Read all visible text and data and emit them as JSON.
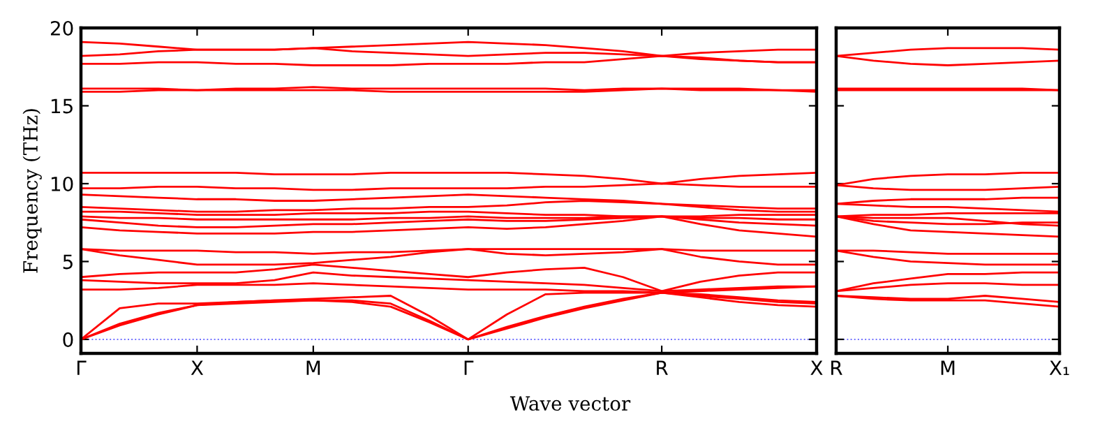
{
  "chart_data": [
    {
      "type": "line",
      "ylabel": "Frequency (THz)",
      "xlabel": "Wave vector",
      "ylim": [
        -0.9,
        20
      ],
      "categories": [
        "Γ",
        null,
        null,
        "X",
        null,
        null,
        "M",
        null,
        null,
        null,
        "Γ",
        null,
        null,
        null,
        null,
        "R",
        null,
        null,
        null,
        "X"
      ],
      "yticks": [
        0,
        5,
        10,
        15,
        20
      ],
      "grid": false,
      "line_style": "solid",
      "marker": "none",
      "ref_lines": [
        {
          "axis": "y",
          "value": 0,
          "color": "#7070ff",
          "line_style": "dotted"
        }
      ],
      "series": [
        {
          "color": "#ff0000",
          "values": [
            19.1,
            19.0,
            18.8,
            18.6,
            18.6,
            18.6,
            18.7,
            18.8,
            18.9,
            19.0,
            19.1,
            19.0,
            18.9,
            18.7,
            18.5,
            18.2,
            18.4,
            18.5,
            18.6,
            18.6
          ]
        },
        {
          "color": "#ff0000",
          "values": [
            18.2,
            18.3,
            18.5,
            18.6,
            18.6,
            18.6,
            18.7,
            18.5,
            18.4,
            18.3,
            18.2,
            18.3,
            18.4,
            18.4,
            18.3,
            18.2,
            18.1,
            17.9,
            17.8,
            17.8
          ]
        },
        {
          "color": "#ff0000",
          "values": [
            17.7,
            17.7,
            17.8,
            17.8,
            17.7,
            17.7,
            17.6,
            17.6,
            17.6,
            17.7,
            17.7,
            17.7,
            17.8,
            17.8,
            18.0,
            18.2,
            18.0,
            17.9,
            17.8,
            17.8
          ]
        },
        {
          "color": "#ff0000",
          "values": [
            16.1,
            16.1,
            16.1,
            16.0,
            16.1,
            16.1,
            16.2,
            16.1,
            16.1,
            16.1,
            16.1,
            16.1,
            16.1,
            16.0,
            16.1,
            16.1,
            16.1,
            16.1,
            16.0,
            16.0
          ]
        },
        {
          "color": "#ff0000",
          "values": [
            15.9,
            15.9,
            16.0,
            16.0,
            16.0,
            16.0,
            16.0,
            16.0,
            15.9,
            15.9,
            15.9,
            15.9,
            15.9,
            15.9,
            16.0,
            16.1,
            16.0,
            16.0,
            16.0,
            15.9
          ]
        },
        {
          "color": "#ff0000",
          "values": [
            10.7,
            10.7,
            10.7,
            10.7,
            10.7,
            10.6,
            10.6,
            10.6,
            10.7,
            10.7,
            10.7,
            10.7,
            10.6,
            10.5,
            10.3,
            10.0,
            10.3,
            10.5,
            10.6,
            10.7
          ]
        },
        {
          "color": "#ff0000",
          "values": [
            9.7,
            9.7,
            9.8,
            9.8,
            9.7,
            9.7,
            9.6,
            9.6,
            9.7,
            9.7,
            9.7,
            9.7,
            9.8,
            9.8,
            9.9,
            10.0,
            9.9,
            9.8,
            9.8,
            9.8
          ]
        },
        {
          "color": "#ff0000",
          "values": [
            9.3,
            9.2,
            9.1,
            9.0,
            9.0,
            8.9,
            8.9,
            9.0,
            9.1,
            9.2,
            9.3,
            9.2,
            9.1,
            9.0,
            8.9,
            8.7,
            8.6,
            8.5,
            8.4,
            8.4
          ]
        },
        {
          "color": "#ff0000",
          "values": [
            8.5,
            8.4,
            8.3,
            8.2,
            8.2,
            8.3,
            8.3,
            8.4,
            8.4,
            8.5,
            8.5,
            8.6,
            8.8,
            8.9,
            8.8,
            8.7,
            8.5,
            8.3,
            8.2,
            8.2
          ]
        },
        {
          "color": "#ff0000",
          "values": [
            8.2,
            8.2,
            8.1,
            8.0,
            8.0,
            8.0,
            8.1,
            8.1,
            8.1,
            8.2,
            8.2,
            8.1,
            8.0,
            8.0,
            7.9,
            7.9,
            7.9,
            8.0,
            8.0,
            8.0
          ]
        },
        {
          "color": "#ff0000",
          "values": [
            7.9,
            7.8,
            7.8,
            7.7,
            7.7,
            7.7,
            7.7,
            7.7,
            7.8,
            7.8,
            7.9,
            7.8,
            7.8,
            7.8,
            7.9,
            7.9,
            7.8,
            7.8,
            7.7,
            7.7
          ]
        },
        {
          "color": "#ff0000",
          "values": [
            7.7,
            7.5,
            7.3,
            7.2,
            7.2,
            7.3,
            7.4,
            7.4,
            7.5,
            7.6,
            7.7,
            7.6,
            7.6,
            7.7,
            7.8,
            7.9,
            7.7,
            7.5,
            7.4,
            7.3
          ]
        },
        {
          "color": "#ff0000",
          "values": [
            7.2,
            7.0,
            6.9,
            6.8,
            6.8,
            6.8,
            6.9,
            6.9,
            7.0,
            7.1,
            7.2,
            7.1,
            7.2,
            7.4,
            7.6,
            7.9,
            7.4,
            7.0,
            6.8,
            6.6
          ]
        },
        {
          "color": "#ff0000",
          "values": [
            5.8,
            5.7,
            5.7,
            5.7,
            5.6,
            5.6,
            5.5,
            5.6,
            5.6,
            5.7,
            5.8,
            5.8,
            5.8,
            5.8,
            5.8,
            5.8,
            5.7,
            5.7,
            5.7,
            5.7
          ]
        },
        {
          "color": "#ff0000",
          "values": [
            5.8,
            5.4,
            5.1,
            4.8,
            4.8,
            4.8,
            4.9,
            5.1,
            5.3,
            5.6,
            5.8,
            5.5,
            5.4,
            5.5,
            5.6,
            5.8,
            5.3,
            5.0,
            4.8,
            4.8
          ]
        },
        {
          "color": "#ff0000",
          "values": [
            4.0,
            4.2,
            4.3,
            4.3,
            4.3,
            4.5,
            4.8,
            4.6,
            4.4,
            4.2,
            4.0,
            4.3,
            4.5,
            4.6,
            4.0,
            3.1,
            3.7,
            4.1,
            4.3,
            4.3
          ]
        },
        {
          "color": "#ff0000",
          "values": [
            3.8,
            3.7,
            3.6,
            3.6,
            3.6,
            3.8,
            4.3,
            4.1,
            4.0,
            3.9,
            3.8,
            3.7,
            3.6,
            3.5,
            3.3,
            3.1,
            3.2,
            3.3,
            3.4,
            3.4
          ]
        },
        {
          "color": "#ff0000",
          "values": [
            3.2,
            3.2,
            3.3,
            3.5,
            3.5,
            3.5,
            3.6,
            3.5,
            3.4,
            3.3,
            3.2,
            3.2,
            3.2,
            3.1,
            3.1,
            3.0,
            3.1,
            3.2,
            3.3,
            3.4
          ]
        },
        {
          "color": "#ff0000",
          "values": [
            0,
            2.0,
            2.3,
            2.3,
            2.4,
            2.5,
            2.6,
            2.7,
            2.8,
            1.5,
            0,
            1.6,
            2.9,
            3.0,
            3.0,
            3.0,
            2.9,
            2.7,
            2.5,
            2.4
          ]
        },
        {
          "color": "#ff0000",
          "values": [
            0,
            1.0,
            1.7,
            2.2,
            2.4,
            2.5,
            2.5,
            2.5,
            2.3,
            1.2,
            0,
            0.8,
            1.5,
            2.1,
            2.6,
            3.0,
            2.8,
            2.6,
            2.4,
            2.3
          ]
        },
        {
          "color": "#ff0000",
          "values": [
            0,
            0.9,
            1.6,
            2.2,
            2.3,
            2.4,
            2.5,
            2.4,
            2.1,
            1.1,
            0,
            0.7,
            1.4,
            2.0,
            2.5,
            3.0,
            2.7,
            2.4,
            2.2,
            2.1
          ]
        }
      ]
    },
    {
      "type": "line",
      "ylim": [
        -0.9,
        20
      ],
      "tick_labels": "x",
      "categories": [
        "R",
        null,
        null,
        "M",
        null,
        null,
        "X₁"
      ],
      "yticks": [
        0,
        5,
        10,
        15,
        20
      ],
      "grid": false,
      "line_style": "solid",
      "marker": "none",
      "ref_lines": [
        {
          "axis": "y",
          "value": 0,
          "color": "#7070ff",
          "line_style": "dotted"
        }
      ],
      "series": [
        {
          "color": "#ff0000",
          "values": [
            18.2,
            18.4,
            18.6,
            18.7,
            18.7,
            18.7,
            18.6
          ]
        },
        {
          "color": "#ff0000",
          "values": [
            18.2,
            17.9,
            17.7,
            17.6,
            17.7,
            17.8,
            17.9
          ]
        },
        {
          "color": "#ff0000",
          "values": [
            16.1,
            16.1,
            16.1,
            16.1,
            16.1,
            16.1,
            16.0
          ]
        },
        {
          "color": "#ff0000",
          "values": [
            16.0,
            16.0,
            16.0,
            16.0,
            16.0,
            16.0,
            16.0
          ]
        },
        {
          "color": "#ff0000",
          "values": [
            9.9,
            10.3,
            10.5,
            10.6,
            10.6,
            10.7,
            10.7
          ]
        },
        {
          "color": "#ff0000",
          "values": [
            9.9,
            9.7,
            9.6,
            9.6,
            9.6,
            9.7,
            9.8
          ]
        },
        {
          "color": "#ff0000",
          "values": [
            8.7,
            8.9,
            9.0,
            9.0,
            9.0,
            9.1,
            9.1
          ]
        },
        {
          "color": "#ff0000",
          "values": [
            8.7,
            8.6,
            8.5,
            8.5,
            8.4,
            8.3,
            8.2
          ]
        },
        {
          "color": "#ff0000",
          "values": [
            7.9,
            8.0,
            8.0,
            8.1,
            8.1,
            8.1,
            8.1
          ]
        },
        {
          "color": "#ff0000",
          "values": [
            7.9,
            7.8,
            7.8,
            7.8,
            7.6,
            7.4,
            7.3
          ]
        },
        {
          "color": "#ff0000",
          "values": [
            7.9,
            7.6,
            7.5,
            7.4,
            7.4,
            7.5,
            7.5
          ]
        },
        {
          "color": "#ff0000",
          "values": [
            7.9,
            7.4,
            7.0,
            6.9,
            6.8,
            6.7,
            6.6
          ]
        },
        {
          "color": "#ff0000",
          "values": [
            5.7,
            5.7,
            5.6,
            5.5,
            5.5,
            5.5,
            5.5
          ]
        },
        {
          "color": "#ff0000",
          "values": [
            5.7,
            5.3,
            5.0,
            4.9,
            4.8,
            4.8,
            4.8
          ]
        },
        {
          "color": "#ff0000",
          "values": [
            3.1,
            3.6,
            3.9,
            4.2,
            4.2,
            4.3,
            4.3
          ]
        },
        {
          "color": "#ff0000",
          "values": [
            3.1,
            3.3,
            3.5,
            3.6,
            3.6,
            3.5,
            3.5
          ]
        },
        {
          "color": "#ff0000",
          "values": [
            2.8,
            2.7,
            2.6,
            2.6,
            2.8,
            2.6,
            2.4
          ]
        },
        {
          "color": "#ff0000",
          "values": [
            2.8,
            2.6,
            2.5,
            2.5,
            2.5,
            2.3,
            2.1
          ]
        }
      ]
    }
  ]
}
